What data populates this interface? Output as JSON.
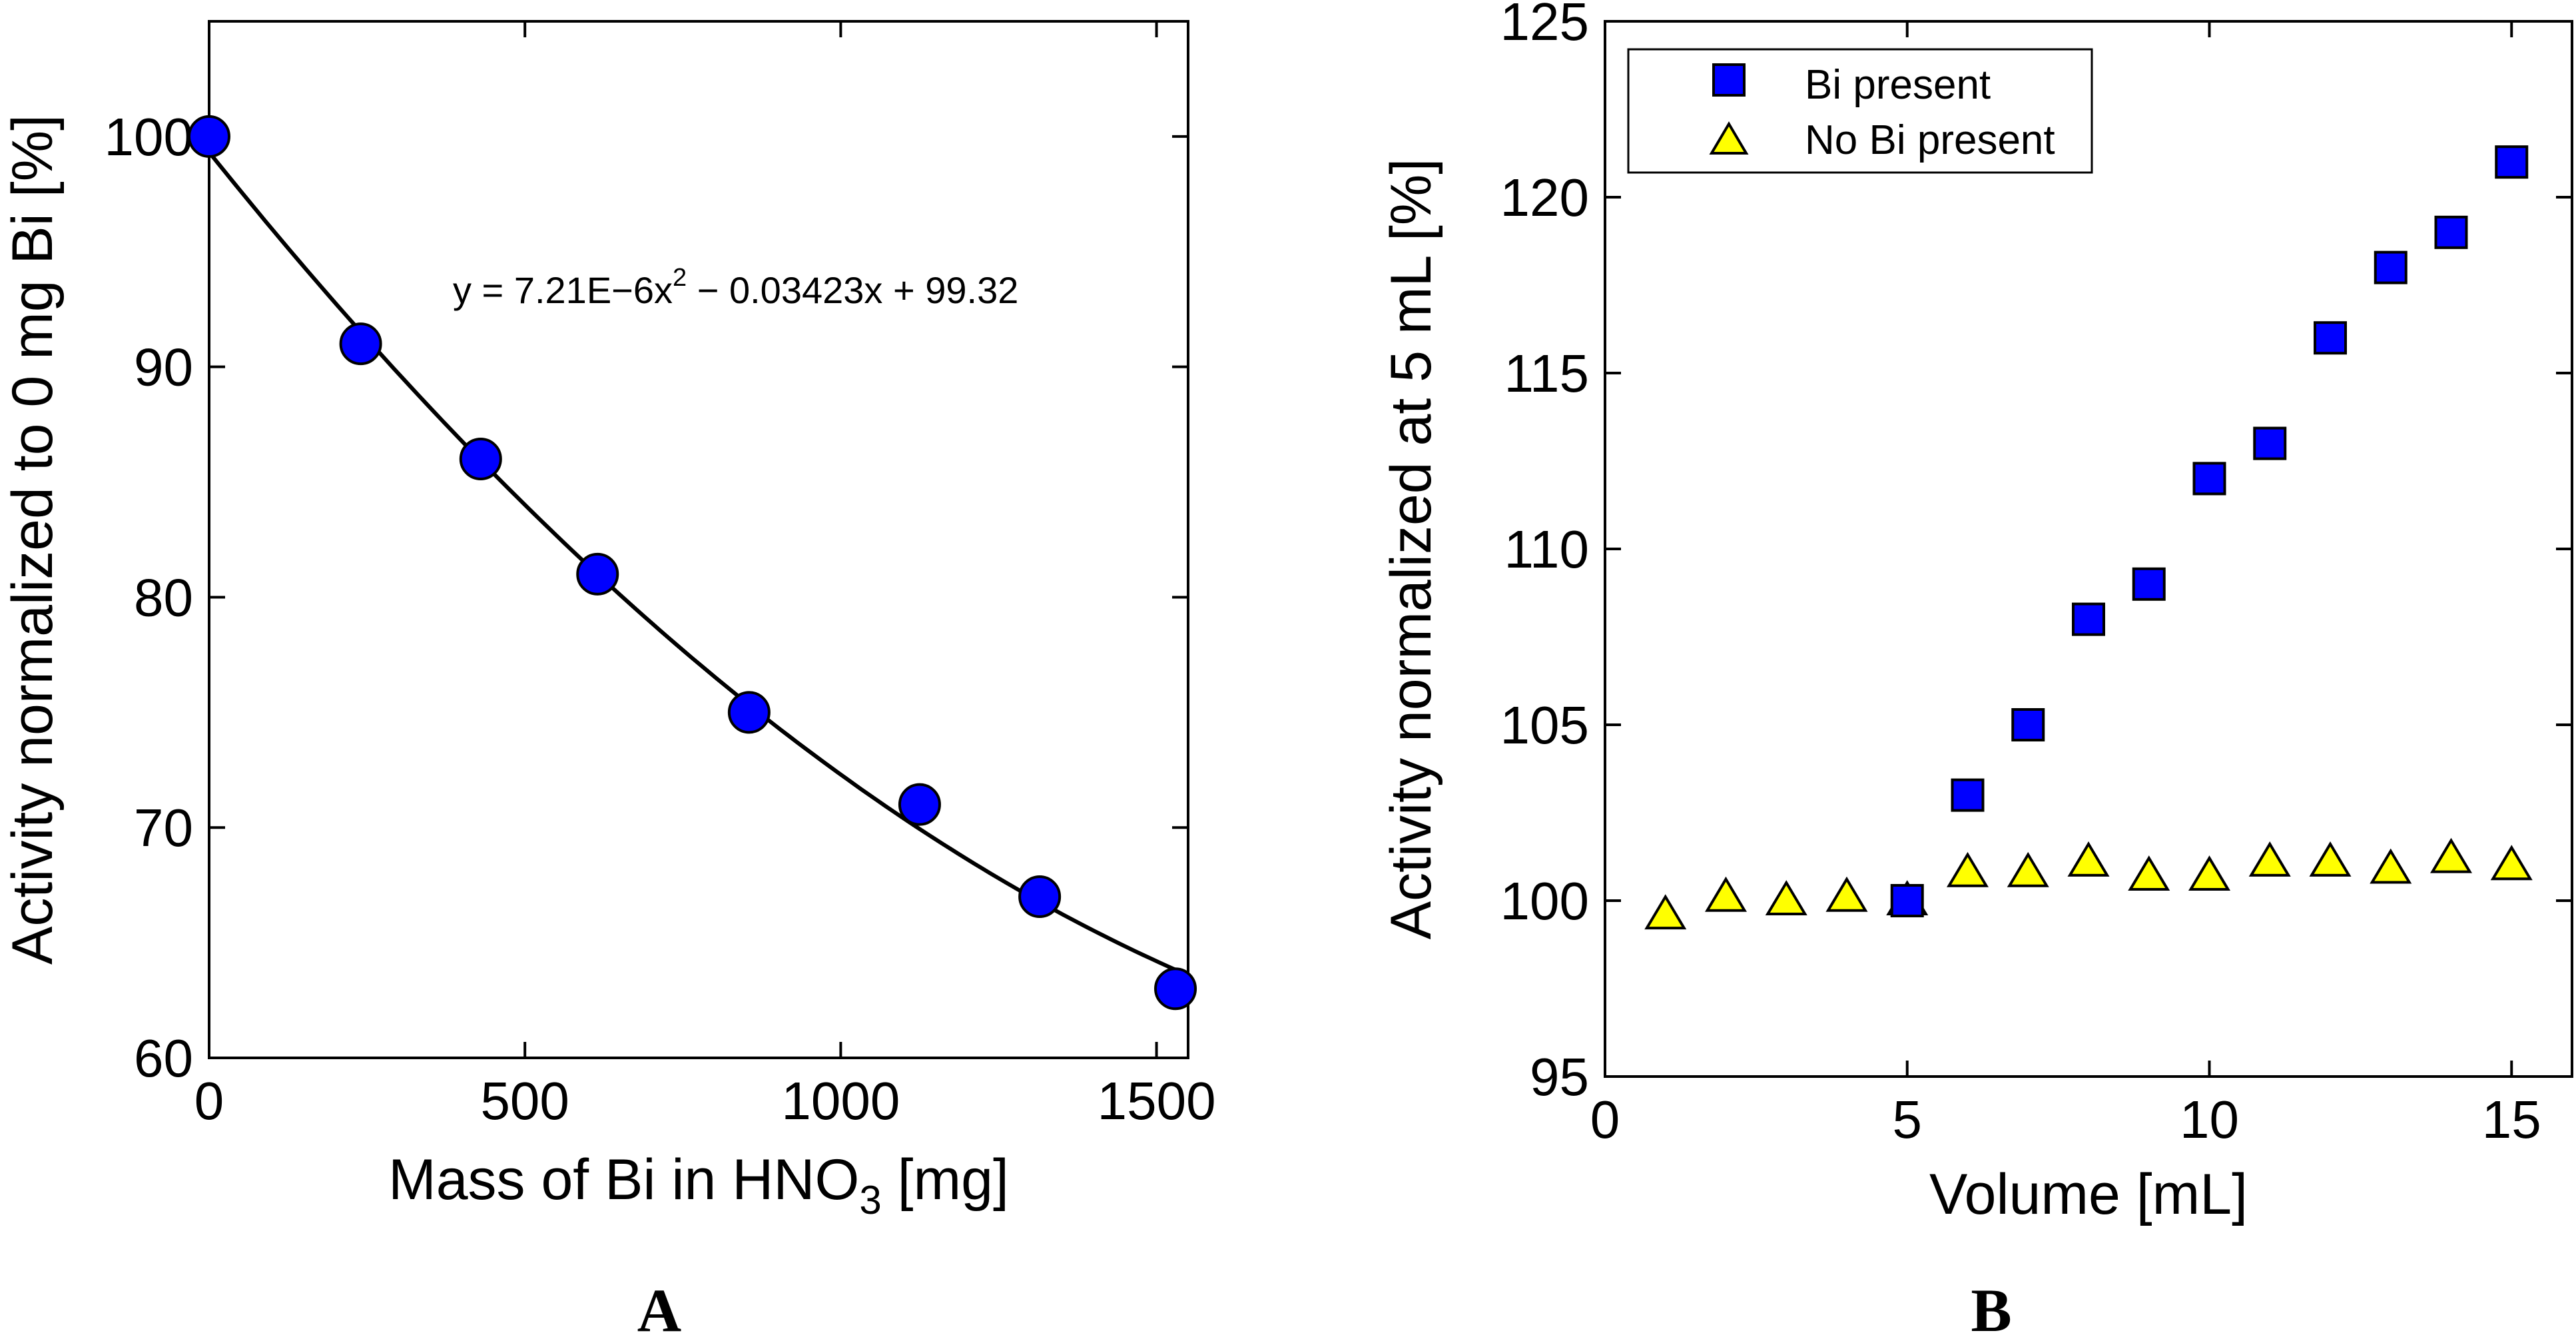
{
  "chart_data": [
    {
      "panel": "A",
      "type": "scatter",
      "xlabel": "Mass of Bi in HNO",
      "xlabel_sub": "3",
      "xlabel_suffix": " [mg]",
      "ylabel": "Activity normalized to 0 mg Bi [%]",
      "xlim": [
        0,
        1550
      ],
      "ylim": [
        60,
        105
      ],
      "xticks": [
        0,
        500,
        1000,
        1500
      ],
      "yticks": [
        60,
        70,
        80,
        90,
        100
      ],
      "annotation": {
        "prefix": "y = 7.21E−6x",
        "sup": "2",
        "suffix": " − 0.03423x + 99.32"
      },
      "fit": {
        "type": "quadratic",
        "a": 7.21e-06,
        "b": -0.03423,
        "c": 99.32
      },
      "series": [
        {
          "marker": "circle",
          "color": "#0000ff",
          "x": [
            0,
            240,
            430,
            615,
            855,
            1125,
            1315,
            1530
          ],
          "y": [
            100,
            91,
            86,
            81,
            75,
            71,
            67,
            63
          ]
        }
      ]
    },
    {
      "panel": "B",
      "type": "scatter",
      "xlabel": "Volume [mL]",
      "ylabel": "Activity normalized at 5 mL [%]",
      "xlim": [
        0,
        16
      ],
      "ylim": [
        95,
        125
      ],
      "xticks": [
        0,
        5,
        10,
        15
      ],
      "yticks": [
        95,
        100,
        105,
        110,
        115,
        120,
        125
      ],
      "legend_position": "top-left",
      "series": [
        {
          "name": "Bi present",
          "marker": "square",
          "color": "#0000ff",
          "x": [
            5,
            6,
            7,
            8,
            9,
            10,
            11,
            12,
            13,
            14,
            15
          ],
          "y": [
            100,
            103,
            105,
            108,
            109,
            112,
            113,
            116,
            118,
            119,
            121
          ]
        },
        {
          "name": "No Bi present",
          "marker": "triangle",
          "color": "#ffff00",
          "x": [
            1,
            2,
            3,
            4,
            5,
            6,
            7,
            8,
            9,
            10,
            11,
            12,
            13,
            14,
            15
          ],
          "y": [
            99.6,
            100.1,
            100.0,
            100.1,
            100.0,
            100.8,
            100.8,
            101.1,
            100.7,
            100.7,
            101.1,
            101.1,
            100.9,
            101.2,
            101.0
          ]
        }
      ]
    }
  ]
}
